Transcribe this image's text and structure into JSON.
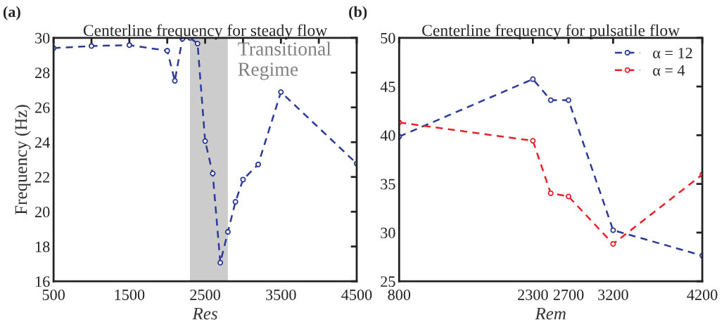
{
  "chart_data": [
    {
      "type": "line",
      "title": "Centerline frequency for steady flow",
      "xlabel": "Res",
      "ylabel": "Frequency (Hz)",
      "x": [
        500,
        1000,
        1500,
        2000,
        2100,
        2200,
        2300,
        2400,
        2500,
        2600,
        2700,
        2800,
        2900,
        3000,
        3200,
        3500,
        4500
      ],
      "series": [
        {
          "color": "#2b3a96",
          "values": [
            29.41,
            29.53,
            29.58,
            29.26,
            27.53,
            29.95,
            30.0,
            29.67,
            24.06,
            22.2,
            17.07,
            18.84,
            20.57,
            21.85,
            22.72,
            26.88,
            22.77
          ]
        }
      ],
      "xlim": [
        500,
        4500
      ],
      "ylim": [
        16,
        30
      ],
      "xticks": [
        500,
        {
          "value": 1000,
          "label": null
        },
        1500,
        {
          "value": 2000,
          "label": null
        },
        2500,
        {
          "value": 3000,
          "label": null
        },
        3500,
        {
          "value": 4000,
          "label": null
        },
        4500
      ],
      "yticks": [
        16,
        18,
        20,
        22,
        24,
        26,
        28,
        30
      ],
      "bands": [
        {
          "axis": "x",
          "from": 2300,
          "to": 2800,
          "label": "Transitional\nRegime",
          "color": "#cccccc"
        }
      ],
      "annotations": [
        "(a)"
      ],
      "marker": "circle",
      "line_style": "dashed",
      "grid": false,
      "legend": false
    },
    {
      "type": "line",
      "title": "Centerline frequency for pulsatile flow",
      "xlabel": "Rem",
      "x": [
        800,
        2300,
        2500,
        2700,
        3200,
        4200
      ],
      "series": [
        {
          "name": "α = 12",
          "color": "#2b3a96",
          "values": [
            39.86,
            45.76,
            43.6,
            43.6,
            30.25,
            27.64
          ]
        },
        {
          "name": "α = 4",
          "color": "#e8202a",
          "values": [
            41.31,
            39.43,
            34.04,
            33.71,
            28.84,
            35.96
          ]
        }
      ],
      "xlim": [
        800,
        4200
      ],
      "ylim": [
        25,
        50
      ],
      "xticks": [
        800,
        2300,
        2700,
        3200,
        4200
      ],
      "yticks": [
        25,
        30,
        35,
        40,
        45,
        50
      ],
      "annotations": [
        "(b)"
      ],
      "marker": "circle",
      "line_style": "dashed",
      "grid": false,
      "legend": "top right"
    }
  ]
}
